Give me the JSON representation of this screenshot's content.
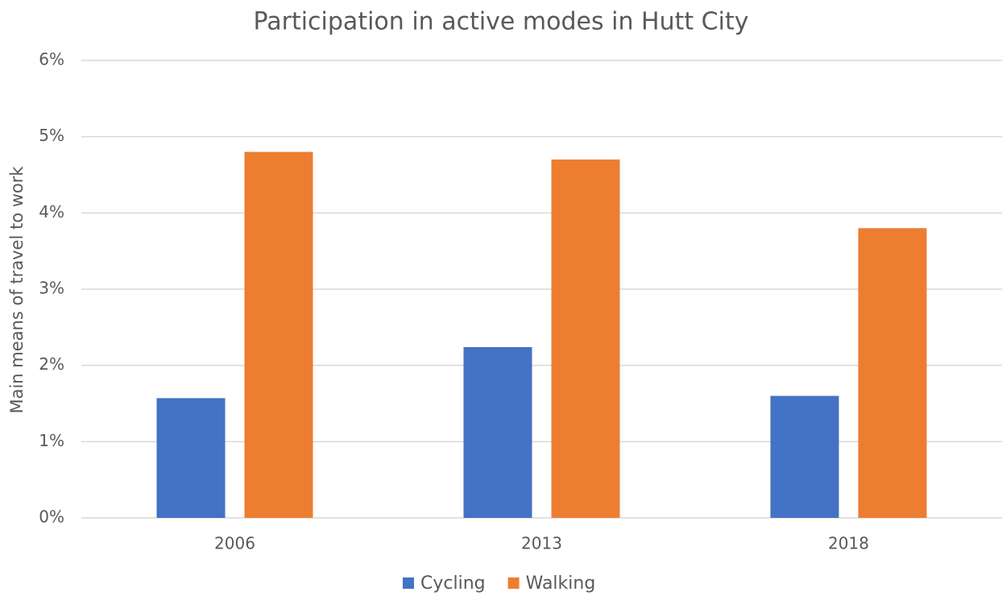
{
  "chart_data": {
    "type": "bar",
    "title": "Participation in active modes in Hutt City",
    "y_label": "Main means of travel to work",
    "categories": [
      "2006",
      "2013",
      "2018"
    ],
    "series": [
      {
        "name": "Cycling",
        "color": "#4472c4",
        "values": [
          1.57,
          2.24,
          1.6
        ]
      },
      {
        "name": "Walking",
        "color": "#ed7d31",
        "values": [
          4.8,
          4.7,
          3.8
        ]
      }
    ],
    "ylim": [
      0,
      6
    ],
    "yticks": [
      {
        "value": 0,
        "label": "0%"
      },
      {
        "value": 1,
        "label": "1%"
      },
      {
        "value": 2,
        "label": "2%"
      },
      {
        "value": 3,
        "label": "3%"
      },
      {
        "value": 4,
        "label": "4%"
      },
      {
        "value": 5,
        "label": "5%"
      },
      {
        "value": 6,
        "label": "6%"
      }
    ],
    "grid": true,
    "legend": "bottom"
  }
}
